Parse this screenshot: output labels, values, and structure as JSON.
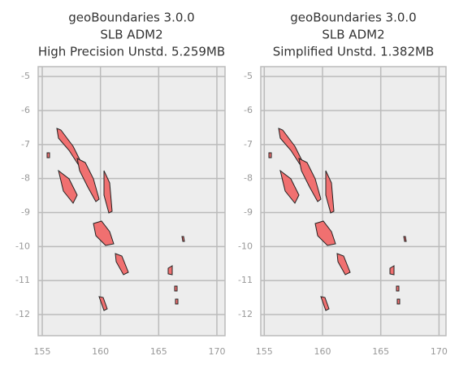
{
  "chart_data": [
    {
      "type": "map",
      "title": [
        "geoBoundaries 3.0.0",
        "SLB ADM2",
        "High Precision Unstd. 5.259MB"
      ],
      "xlim": [
        154.65,
        170.7
      ],
      "ylim": [
        -12.62,
        -4.71
      ],
      "xticks": [
        155,
        160,
        165,
        170
      ],
      "yticks": [
        -5,
        -6,
        -7,
        -8,
        -9,
        -10,
        -11,
        -12
      ],
      "grid": true,
      "color": "#f07070"
    },
    {
      "type": "map",
      "title": [
        "geoBoundaries 3.0.0",
        "SLB ADM2",
        "Simplified Unstd. 1.382MB"
      ],
      "xlim": [
        154.7,
        170.6
      ],
      "ylim": [
        -12.62,
        -4.71
      ],
      "xticks": [
        155,
        160,
        165,
        170
      ],
      "yticks": [
        -5,
        -6,
        -7,
        -8,
        -9,
        -10,
        -11,
        -12
      ],
      "grid": true,
      "color": "#f07070"
    }
  ]
}
